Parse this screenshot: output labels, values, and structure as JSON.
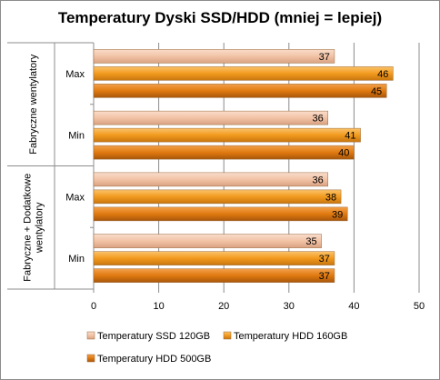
{
  "chart_data": {
    "type": "bar",
    "orientation": "horizontal",
    "title": "Temperatury Dyski SSD/HDD (mniej = lepiej)",
    "groups": [
      {
        "label": "Fabryczne wentylatory",
        "categories": [
          "Max",
          "Min"
        ]
      },
      {
        "label": "Fabryczne + Dodatkowe wentylatory",
        "label_lines": [
          "Fabryczne + Dodatkowe",
          "wentylatory"
        ],
        "categories": [
          "Max",
          "Min"
        ]
      }
    ],
    "series": [
      {
        "name": "Temperatury SSD 120GB",
        "color": "#f2c3a6",
        "values": [
          37,
          36,
          36,
          35
        ]
      },
      {
        "name": "Temperatury HDD 160GB",
        "color": "#f29a1e",
        "values": [
          46,
          41,
          38,
          37
        ]
      },
      {
        "name": "Temperatury HDD 500GB",
        "color": "#e07a10",
        "values": [
          45,
          40,
          39,
          37
        ]
      }
    ],
    "xlim": [
      0,
      50
    ],
    "xticks": [
      0,
      10,
      20,
      30,
      40,
      50
    ],
    "xlabel": "",
    "ylabel": "",
    "grid": true,
    "legend_position": "bottom",
    "data_labels": true
  }
}
